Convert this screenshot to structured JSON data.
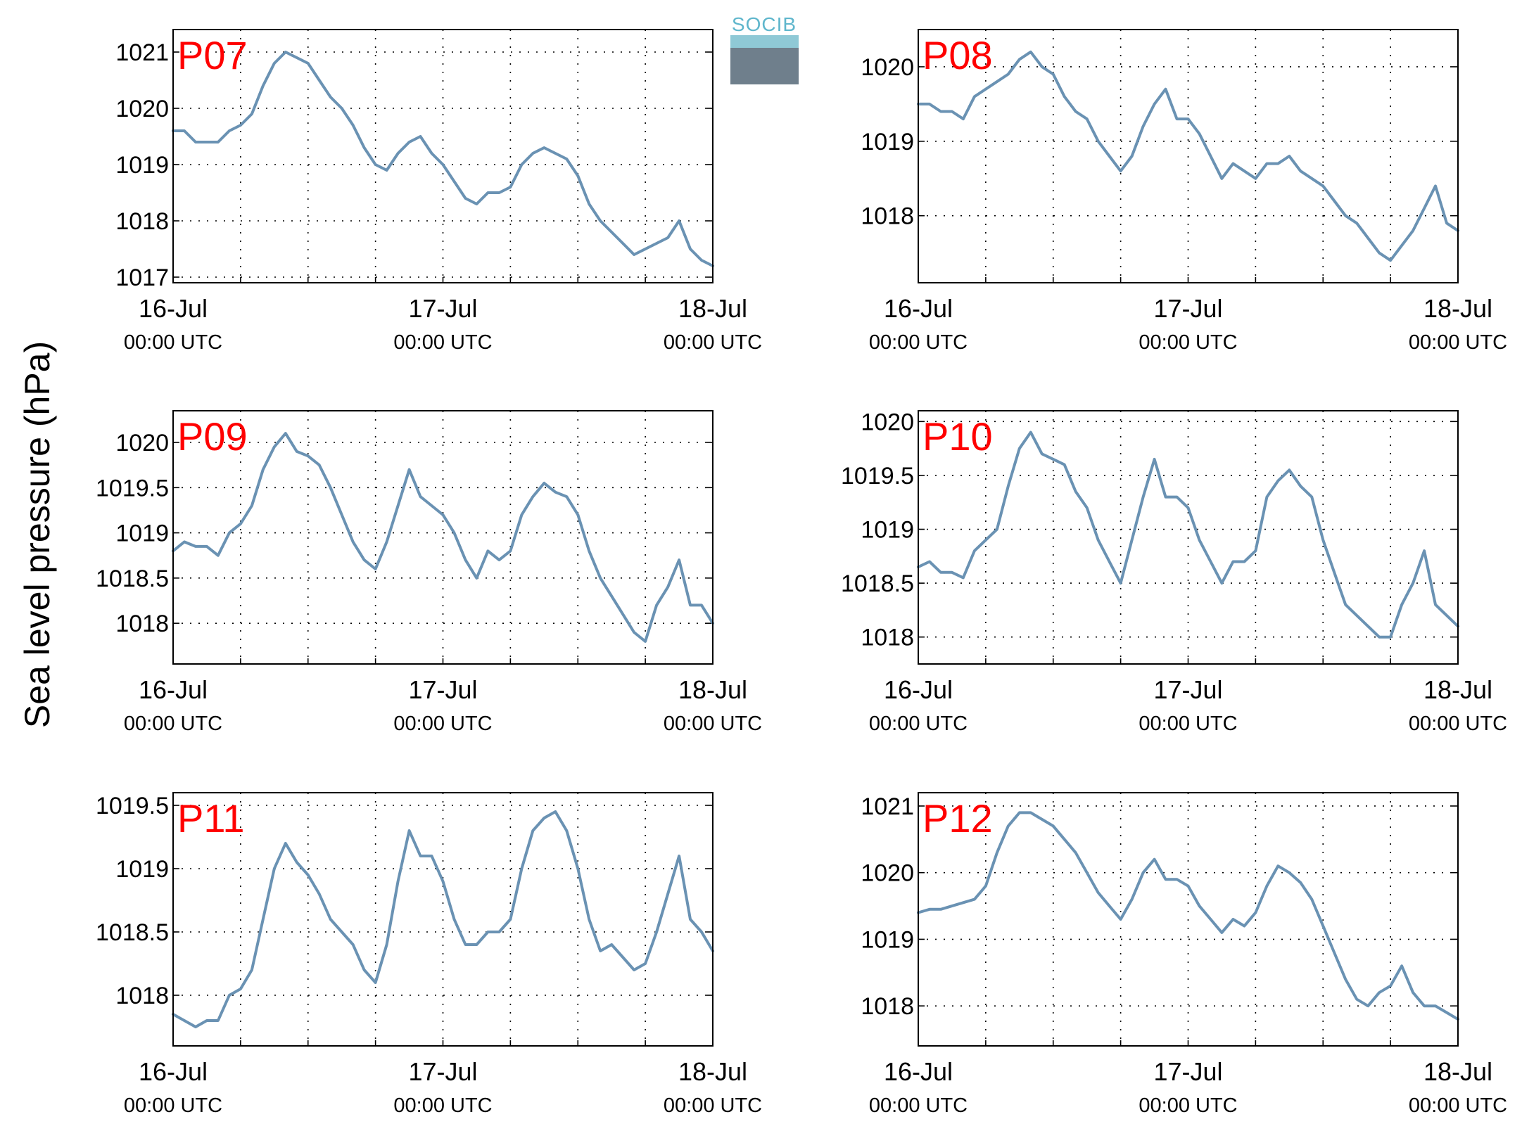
{
  "figure": {
    "ylabel": "Sea level pressure (hPa)",
    "logo_text": "SOCIB",
    "line_color": "#6a92b3",
    "title_color": "#ff0000",
    "grid": true,
    "grid_style": "dotted"
  },
  "x_axis": {
    "ticks": [
      "16-Jul",
      "17-Jul",
      "18-Jul"
    ],
    "tick_subs": [
      "00:00 UTC",
      "00:00 UTC",
      "00:00 UTC"
    ],
    "range_hours": [
      0,
      48
    ]
  },
  "chart_data": [
    {
      "type": "line",
      "title": "P07",
      "ylim": [
        1016.9,
        1021.4
      ],
      "yticks": [
        "1017",
        "1018",
        "1019",
        "1020",
        "1021"
      ],
      "series": [
        {
          "x": [
            0,
            1,
            2,
            3,
            4,
            5,
            6,
            7,
            8,
            9,
            10,
            11,
            12,
            13,
            14,
            15,
            16,
            17,
            18,
            19,
            20,
            21,
            22,
            23,
            24,
            25,
            26,
            27,
            28,
            29,
            30,
            31,
            32,
            33,
            34,
            35,
            36,
            37,
            38,
            39,
            40,
            41,
            42,
            43,
            44,
            45,
            46,
            47,
            48
          ],
          "y": [
            1019.6,
            1019.6,
            1019.4,
            1019.4,
            1019.4,
            1019.6,
            1019.7,
            1019.9,
            1020.4,
            1020.8,
            1021.0,
            1020.9,
            1020.8,
            1020.5,
            1020.2,
            1020.0,
            1019.7,
            1019.3,
            1019.0,
            1018.9,
            1019.2,
            1019.4,
            1019.5,
            1019.2,
            1019.0,
            1018.7,
            1018.4,
            1018.3,
            1018.5,
            1018.5,
            1018.6,
            1019.0,
            1019.2,
            1019.3,
            1019.2,
            1019.1,
            1018.8,
            1018.3,
            1018.0,
            1017.8,
            1017.6,
            1017.4,
            1017.5,
            1017.6,
            1017.7,
            1018.0,
            1017.5,
            1017.3,
            1017.2
          ]
        }
      ]
    },
    {
      "type": "line",
      "title": "P08",
      "ylim": [
        1017.1,
        1020.5
      ],
      "yticks": [
        "1018",
        "1019",
        "1020"
      ],
      "series": [
        {
          "x": [
            0,
            1,
            2,
            3,
            4,
            5,
            6,
            7,
            8,
            9,
            10,
            11,
            12,
            13,
            14,
            15,
            16,
            17,
            18,
            19,
            20,
            21,
            22,
            23,
            24,
            25,
            26,
            27,
            28,
            29,
            30,
            31,
            32,
            33,
            34,
            35,
            36,
            37,
            38,
            39,
            40,
            41,
            42,
            43,
            44,
            45,
            46,
            47,
            48
          ],
          "y": [
            1019.5,
            1019.5,
            1019.4,
            1019.4,
            1019.3,
            1019.6,
            1019.7,
            1019.8,
            1019.9,
            1020.1,
            1020.2,
            1020.0,
            1019.9,
            1019.6,
            1019.4,
            1019.3,
            1019.0,
            1018.8,
            1018.6,
            1018.8,
            1019.2,
            1019.5,
            1019.7,
            1019.3,
            1019.3,
            1019.1,
            1018.8,
            1018.5,
            1018.7,
            1018.6,
            1018.5,
            1018.7,
            1018.7,
            1018.8,
            1018.6,
            1018.5,
            1018.4,
            1018.2,
            1018.0,
            1017.9,
            1017.7,
            1017.5,
            1017.4,
            1017.6,
            1017.8,
            1018.1,
            1018.4,
            1017.9,
            1017.8
          ]
        }
      ]
    },
    {
      "type": "line",
      "title": "P09",
      "ylim": [
        1017.55,
        1020.35
      ],
      "yticks": [
        "1018",
        "1018.5",
        "1019",
        "1019.5",
        "1020"
      ],
      "series": [
        {
          "x": [
            0,
            1,
            2,
            3,
            4,
            5,
            6,
            7,
            8,
            9,
            10,
            11,
            12,
            13,
            14,
            15,
            16,
            17,
            18,
            19,
            20,
            21,
            22,
            23,
            24,
            25,
            26,
            27,
            28,
            29,
            30,
            31,
            32,
            33,
            34,
            35,
            36,
            37,
            38,
            39,
            40,
            41,
            42,
            43,
            44,
            45,
            46,
            47,
            48
          ],
          "y": [
            1018.8,
            1018.9,
            1018.85,
            1018.85,
            1018.75,
            1019.0,
            1019.1,
            1019.3,
            1019.7,
            1019.95,
            1020.1,
            1019.9,
            1019.85,
            1019.75,
            1019.5,
            1019.2,
            1018.9,
            1018.7,
            1018.6,
            1018.9,
            1019.3,
            1019.7,
            1019.4,
            1019.3,
            1019.2,
            1019.0,
            1018.7,
            1018.5,
            1018.8,
            1018.7,
            1018.8,
            1019.2,
            1019.4,
            1019.55,
            1019.45,
            1019.4,
            1019.2,
            1018.8,
            1018.5,
            1018.3,
            1018.1,
            1017.9,
            1017.8,
            1018.2,
            1018.4,
            1018.7,
            1018.2,
            1018.2,
            1018.0
          ]
        }
      ]
    },
    {
      "type": "line",
      "title": "P10",
      "ylim": [
        1017.75,
        1020.1
      ],
      "yticks": [
        "1018",
        "1018.5",
        "1019",
        "1019.5",
        "1020"
      ],
      "series": [
        {
          "x": [
            0,
            1,
            2,
            3,
            4,
            5,
            6,
            7,
            8,
            9,
            10,
            11,
            12,
            13,
            14,
            15,
            16,
            17,
            18,
            19,
            20,
            21,
            22,
            23,
            24,
            25,
            26,
            27,
            28,
            29,
            30,
            31,
            32,
            33,
            34,
            35,
            36,
            37,
            38,
            39,
            40,
            41,
            42,
            43,
            44,
            45,
            46,
            47,
            48
          ],
          "y": [
            1018.65,
            1018.7,
            1018.6,
            1018.6,
            1018.55,
            1018.8,
            1018.9,
            1019.0,
            1019.4,
            1019.75,
            1019.9,
            1019.7,
            1019.65,
            1019.6,
            1019.35,
            1019.2,
            1018.9,
            1018.7,
            1018.5,
            1018.9,
            1019.3,
            1019.65,
            1019.3,
            1019.3,
            1019.2,
            1018.9,
            1018.7,
            1018.5,
            1018.7,
            1018.7,
            1018.8,
            1019.3,
            1019.45,
            1019.55,
            1019.4,
            1019.3,
            1018.9,
            1018.6,
            1018.3,
            1018.2,
            1018.1,
            1018.0,
            1018.0,
            1018.3,
            1018.5,
            1018.8,
            1018.3,
            1018.2,
            1018.1
          ]
        }
      ]
    },
    {
      "type": "line",
      "title": "P11",
      "ylim": [
        1017.6,
        1019.6
      ],
      "yticks": [
        "1018",
        "1018.5",
        "1019",
        "1019.5"
      ],
      "series": [
        {
          "x": [
            0,
            1,
            2,
            3,
            4,
            5,
            6,
            7,
            8,
            9,
            10,
            11,
            12,
            13,
            14,
            15,
            16,
            17,
            18,
            19,
            20,
            21,
            22,
            23,
            24,
            25,
            26,
            27,
            28,
            29,
            30,
            31,
            32,
            33,
            34,
            35,
            36,
            37,
            38,
            39,
            40,
            41,
            42,
            43,
            44,
            45,
            46,
            47,
            48
          ],
          "y": [
            1017.85,
            1017.8,
            1017.75,
            1017.8,
            1017.8,
            1018.0,
            1018.05,
            1018.2,
            1018.6,
            1019.0,
            1019.2,
            1019.05,
            1018.95,
            1018.8,
            1018.6,
            1018.5,
            1018.4,
            1018.2,
            1018.1,
            1018.4,
            1018.9,
            1019.3,
            1019.1,
            1019.1,
            1018.9,
            1018.6,
            1018.4,
            1018.4,
            1018.5,
            1018.5,
            1018.6,
            1019.0,
            1019.3,
            1019.4,
            1019.45,
            1019.3,
            1019.0,
            1018.6,
            1018.35,
            1018.4,
            1018.3,
            1018.2,
            1018.25,
            1018.5,
            1018.8,
            1019.1,
            1018.6,
            1018.5,
            1018.35
          ]
        }
      ]
    },
    {
      "type": "line",
      "title": "P12",
      "ylim": [
        1017.4,
        1021.2
      ],
      "yticks": [
        "1018",
        "1019",
        "1020",
        "1021"
      ],
      "series": [
        {
          "x": [
            0,
            1,
            2,
            3,
            4,
            5,
            6,
            7,
            8,
            9,
            10,
            11,
            12,
            13,
            14,
            15,
            16,
            17,
            18,
            19,
            20,
            21,
            22,
            23,
            24,
            25,
            26,
            27,
            28,
            29,
            30,
            31,
            32,
            33,
            34,
            35,
            36,
            37,
            38,
            39,
            40,
            41,
            42,
            43,
            44,
            45,
            46,
            47,
            48
          ],
          "y": [
            1019.4,
            1019.45,
            1019.45,
            1019.5,
            1019.55,
            1019.6,
            1019.8,
            1020.3,
            1020.7,
            1020.9,
            1020.9,
            1020.8,
            1020.7,
            1020.5,
            1020.3,
            1020.0,
            1019.7,
            1019.5,
            1019.3,
            1019.6,
            1020.0,
            1020.2,
            1019.9,
            1019.9,
            1019.8,
            1019.5,
            1019.3,
            1019.1,
            1019.3,
            1019.2,
            1019.4,
            1019.8,
            1020.1,
            1020.0,
            1019.85,
            1019.6,
            1019.2,
            1018.8,
            1018.4,
            1018.1,
            1018.0,
            1018.2,
            1018.3,
            1018.6,
            1018.2,
            1018.0,
            1018.0,
            1017.9,
            1017.8
          ]
        }
      ]
    }
  ]
}
